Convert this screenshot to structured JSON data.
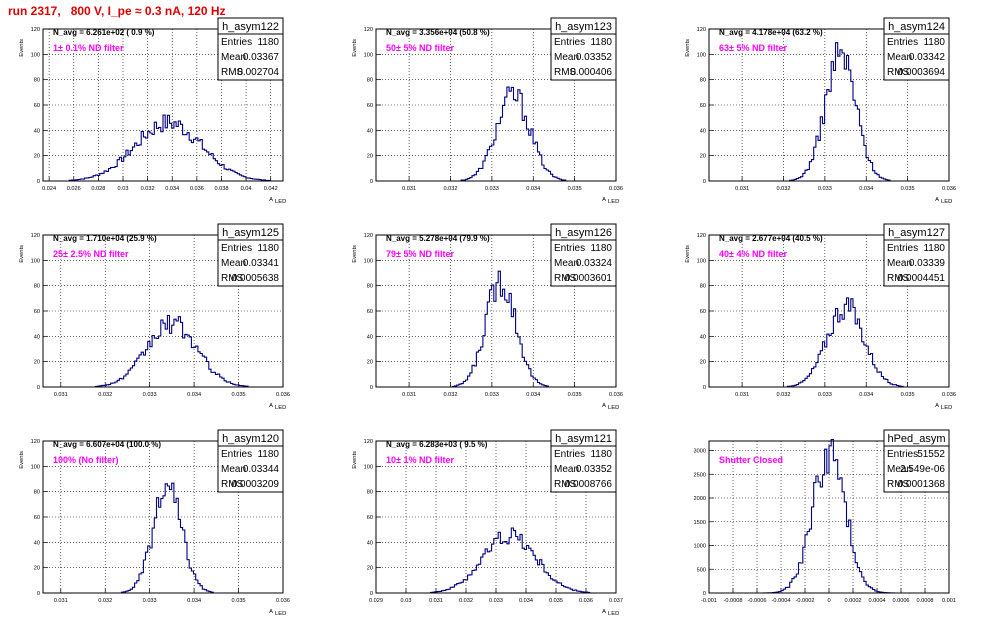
{
  "page_title": "run 2317,   800 V, I_pe ≈ 0.3 nA, 120 Hz",
  "stats_labels": {
    "entries": "Entries",
    "mean": "Mean",
    "rms": "RMS"
  },
  "chart_data": [
    {
      "type": "histogram",
      "name": "h_asym122",
      "ylabel": "Events",
      "xlabel": "A",
      "xlabel_sub": "LED",
      "xlim": [
        0.0235,
        0.043
      ],
      "ylim": [
        0,
        120
      ],
      "xticks": [
        "0.024",
        "0.026",
        "0.028",
        "0.03",
        "0.032",
        "0.034",
        "0.036",
        "0.038",
        "0.04",
        "0.042"
      ],
      "xtick_values": [
        0.024,
        0.026,
        0.028,
        0.03,
        0.032,
        0.034,
        0.036,
        0.038,
        0.04,
        0.042
      ],
      "yticks": [
        0,
        20,
        40,
        60,
        80,
        100,
        120
      ],
      "navg": "N_avg = 6.261e+02 ( 0.9 %)",
      "filter": "1± 0.1% ND filter",
      "stats": {
        "entries": "1180",
        "mean": "0.03367",
        "rms": "0.002704"
      },
      "peak": 47,
      "peak_x": 0.0337
    },
    {
      "type": "histogram",
      "name": "h_asym123",
      "ylabel": "Events",
      "xlabel": "A",
      "xlabel_sub": "LED",
      "xlim": [
        0.0302,
        0.036
      ],
      "ylim": [
        0,
        120
      ],
      "xticks": [
        "0.031",
        "0.032",
        "0.033",
        "0.034",
        "0.035",
        "0.036"
      ],
      "xtick_values": [
        0.031,
        0.032,
        0.033,
        0.034,
        0.035,
        0.036
      ],
      "yticks": [
        0,
        20,
        40,
        60,
        80,
        100,
        120
      ],
      "navg": "N_avg = 3.356e+04 (50.8 %)",
      "filter": "50± 5% ND filter",
      "stats": {
        "entries": "1180",
        "mean": "0.03352",
        "rms": "0.000406"
      },
      "peak": 69,
      "peak_x": 0.03352
    },
    {
      "type": "histogram",
      "name": "h_asym124",
      "ylabel": "Events",
      "xlabel": "A",
      "xlabel_sub": "LED",
      "xlim": [
        0.0302,
        0.036
      ],
      "ylim": [
        0,
        120
      ],
      "xticks": [
        "0.031",
        "0.032",
        "0.033",
        "0.034",
        "0.035",
        "0.036"
      ],
      "xtick_values": [
        0.031,
        0.032,
        0.033,
        0.034,
        0.035,
        0.036
      ],
      "yticks": [
        0,
        20,
        40,
        60,
        80,
        100,
        120
      ],
      "navg": "N_avg = 4.178e+04 (63.2 %)",
      "filter": "63± 5% ND filter",
      "stats": {
        "entries": "1180",
        "mean": "0.03342",
        "rms": "0.0003694"
      },
      "peak": 102,
      "peak_x": 0.03338
    },
    {
      "type": "histogram",
      "name": "h_asym125",
      "ylabel": "Events",
      "xlabel": "A",
      "xlabel_sub": "LED",
      "xlim": [
        0.0306,
        0.036
      ],
      "ylim": [
        0,
        120
      ],
      "xticks": [
        "0.031",
        "0.032",
        "0.033",
        "0.034",
        "0.035",
        "0.036"
      ],
      "xtick_values": [
        0.031,
        0.032,
        0.033,
        0.034,
        0.035,
        0.036
      ],
      "yticks": [
        0,
        20,
        40,
        60,
        80,
        100,
        120
      ],
      "navg": "N_avg = 1.710e+04 (25.9 %)",
      "filter": "25± 2.5% ND filter",
      "stats": {
        "entries": "1180",
        "mean": "0.03341",
        "rms": "0.0005638"
      },
      "peak": 51,
      "peak_x": 0.0335
    },
    {
      "type": "histogram",
      "name": "h_asym126",
      "ylabel": "Events",
      "xlabel": "A",
      "xlabel_sub": "LED",
      "xlim": [
        0.0302,
        0.036
      ],
      "ylim": [
        0,
        120
      ],
      "xticks": [
        "0.031",
        "0.032",
        "0.033",
        "0.034",
        "0.035",
        "0.036"
      ],
      "xtick_values": [
        0.031,
        0.032,
        0.033,
        0.034,
        0.035,
        0.036
      ],
      "yticks": [
        0,
        20,
        40,
        60,
        80,
        100,
        120
      ],
      "navg": "N_avg = 5.278e+04 (79.9 %)",
      "filter": "79± 5% ND filter",
      "stats": {
        "entries": "1180",
        "mean": "0.03324",
        "rms": "0.0003601"
      },
      "peak": 87,
      "peak_x": 0.03322
    },
    {
      "type": "histogram",
      "name": "h_asym127",
      "ylabel": "Events",
      "xlabel": "A",
      "xlabel_sub": "LED",
      "xlim": [
        0.0302,
        0.036
      ],
      "ylim": [
        0,
        120
      ],
      "xticks": [
        "0.031",
        "0.032",
        "0.033",
        "0.034",
        "0.035",
        "0.036"
      ],
      "xtick_values": [
        0.031,
        0.032,
        0.033,
        0.034,
        0.035,
        0.036
      ],
      "yticks": [
        0,
        20,
        40,
        60,
        80,
        100,
        120
      ],
      "navg": "N_avg = 2.677e+04 (40.5 %)",
      "filter": "40± 4% ND filter",
      "stats": {
        "entries": "1180",
        "mean": "0.03339",
        "rms": "0.0004451"
      },
      "peak": 65,
      "peak_x": 0.0335
    },
    {
      "type": "histogram",
      "name": "h_asym120",
      "ylabel": "Events",
      "xlabel": "A",
      "xlabel_sub": "LED",
      "xlim": [
        0.0306,
        0.036
      ],
      "ylim": [
        0,
        120
      ],
      "xticks": [
        "0.031",
        "0.032",
        "0.033",
        "0.034",
        "0.035",
        "0.036"
      ],
      "xtick_values": [
        0.031,
        0.032,
        0.033,
        0.034,
        0.035,
        0.036
      ],
      "yticks": [
        0,
        20,
        40,
        60,
        80,
        100,
        120
      ],
      "navg": "N_avg = 6.607e+04 (100.0 %)",
      "filter": "100% (No filter)",
      "stats": {
        "entries": "1180",
        "mean": "0.03344",
        "rms": "0.0003209"
      },
      "peak": 84,
      "peak_x": 0.0334
    },
    {
      "type": "histogram",
      "name": "h_asym121",
      "ylabel": "Events",
      "xlabel": "A",
      "xlabel_sub": "LED",
      "xlim": [
        0.029,
        0.037
      ],
      "ylim": [
        0,
        120
      ],
      "xticks": [
        "0.029",
        "0.03",
        "0.031",
        "0.032",
        "0.033",
        "0.034",
        "0.035",
        "0.036",
        "0.037"
      ],
      "xtick_values": [
        0.029,
        0.03,
        0.031,
        0.032,
        0.033,
        0.034,
        0.035,
        0.036,
        0.037
      ],
      "yticks": [
        0,
        20,
        40,
        60,
        80,
        100,
        120
      ],
      "navg": "N_avg = 6.283e+03 ( 9.5 %)",
      "filter": "10± 1% ND filter",
      "stats": {
        "entries": "1180",
        "mean": "0.03352",
        "rms": "0.0008766"
      },
      "peak": 47,
      "peak_x": 0.03345
    },
    {
      "type": "histogram",
      "name": "hPed_asym",
      "ylabel": "",
      "xlabel": "",
      "xlabel_sub": "",
      "xlim": [
        -0.001,
        0.001
      ],
      "ylim": [
        0,
        3200
      ],
      "xticks": [
        "-0.001",
        "-0.0008",
        "-0.0006",
        "-0.0004",
        "-0.0002",
        "0",
        "0.0002",
        "0.0004",
        "0.0006",
        "0.0008",
        "0.001"
      ],
      "xtick_values": [
        -0.001,
        -0.0008,
        -0.0006,
        -0.0004,
        -0.0002,
        0,
        0.0002,
        0.0004,
        0.0006,
        0.0008,
        0.001
      ],
      "yticks": [
        0,
        500,
        1000,
        1500,
        2000,
        2500,
        3000
      ],
      "navg": "",
      "filter": "Shutter Closed",
      "stats": {
        "entries": "51552",
        "mean": "2.549e-06",
        "rms": "0.0001368"
      },
      "peak": 3000,
      "peak_x": 0.0
    }
  ]
}
